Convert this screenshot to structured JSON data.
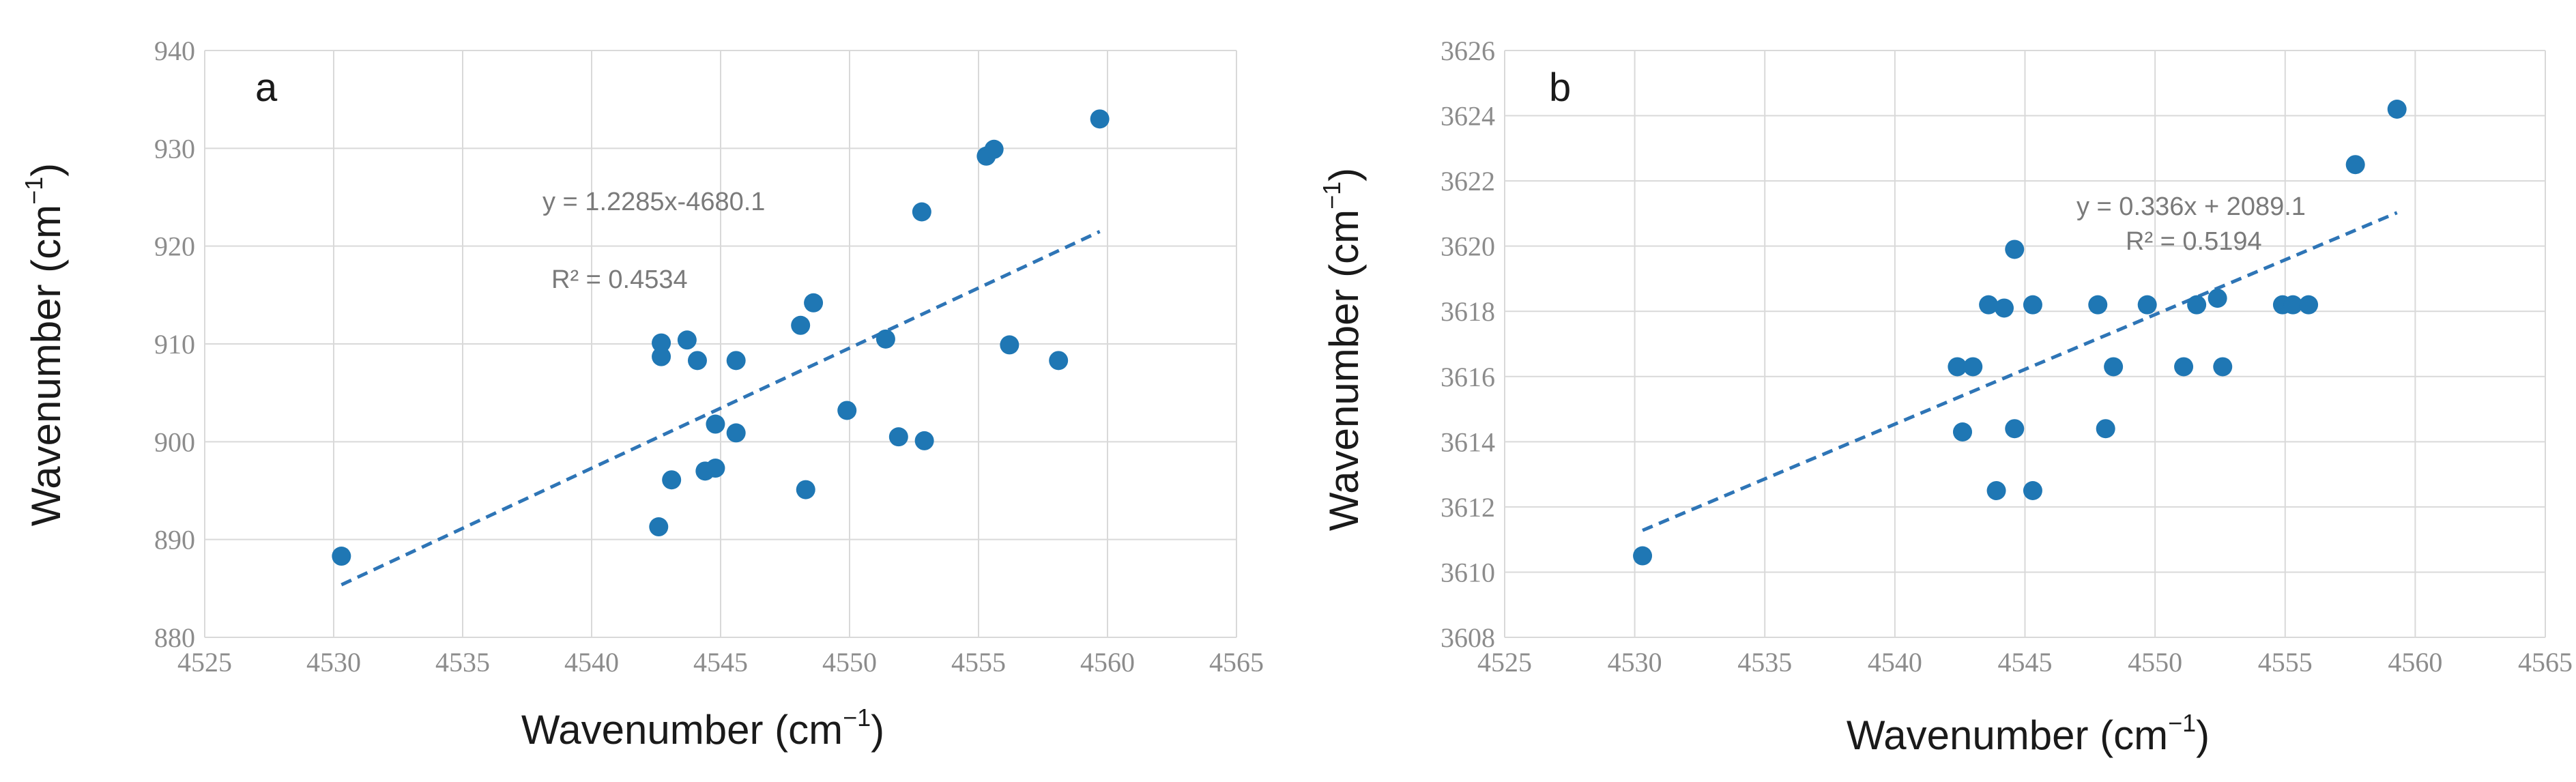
{
  "chart_data": [
    {
      "type": "scatter",
      "panel_label": "a",
      "xlabel": "Wavenumber (cm",
      "xlabel_sup": "−1",
      "xlabel_close": ")",
      "ylabel": "Wavenumber (cm",
      "ylabel_sup": "−1",
      "ylabel_close": ")",
      "xlim": [
        4525,
        4565
      ],
      "ylim": [
        880,
        940
      ],
      "xticks": [
        4525,
        4530,
        4535,
        4540,
        4545,
        4550,
        4555,
        4560,
        4565
      ],
      "yticks": [
        880,
        890,
        900,
        910,
        920,
        930,
        940
      ],
      "grid": true,
      "point_color": "#1f77b4",
      "points": [
        [
          4530.3,
          888.3
        ],
        [
          4542.6,
          891.3
        ],
        [
          4542.7,
          910.1
        ],
        [
          4542.7,
          908.7
        ],
        [
          4543.1,
          896.1
        ],
        [
          4543.7,
          910.4
        ],
        [
          4544.1,
          908.3
        ],
        [
          4544.4,
          897.0
        ],
        [
          4544.8,
          901.8
        ],
        [
          4544.8,
          897.3
        ],
        [
          4545.6,
          908.3
        ],
        [
          4545.6,
          900.9
        ],
        [
          4548.1,
          911.9
        ],
        [
          4548.3,
          895.1
        ],
        [
          4548.6,
          914.2
        ],
        [
          4549.9,
          903.2
        ],
        [
          4551.4,
          910.5
        ],
        [
          4551.9,
          900.5
        ],
        [
          4552.8,
          923.5
        ],
        [
          4552.9,
          900.1
        ],
        [
          4555.3,
          929.2
        ],
        [
          4555.6,
          929.9
        ],
        [
          4556.2,
          909.9
        ],
        [
          4558.1,
          908.3
        ],
        [
          4559.7,
          933.0
        ]
      ],
      "trendline": {
        "slope": 1.2285,
        "intercept": -4680.1,
        "x_range": [
          4530.3,
          4559.7
        ],
        "color": "#2e75b6",
        "style": "dashed"
      },
      "equation": "y = 1.2285x-4680.1",
      "r_squared": "R² = 0.4534"
    },
    {
      "type": "scatter",
      "panel_label": "b",
      "xlabel": "Wavenumber (cm",
      "xlabel_sup": "−1",
      "xlabel_close": ")",
      "ylabel": "Wavenumber (cm",
      "ylabel_sup": "−1",
      "ylabel_close": ")",
      "xlim": [
        4525,
        4565
      ],
      "ylim": [
        3608,
        3626
      ],
      "xticks": [
        4525,
        4530,
        4535,
        4540,
        4545,
        4550,
        4555,
        4560,
        4565
      ],
      "yticks": [
        3608,
        3610,
        3612,
        3614,
        3616,
        3618,
        3620,
        3622,
        3624,
        3626
      ],
      "grid": true,
      "point_color": "#1f77b4",
      "points": [
        [
          4530.3,
          3610.5
        ],
        [
          4542.4,
          3616.3
        ],
        [
          4542.6,
          3614.3
        ],
        [
          4543.0,
          3616.3
        ],
        [
          4543.6,
          3618.2
        ],
        [
          4543.9,
          3612.5
        ],
        [
          4544.2,
          3618.1
        ],
        [
          4544.6,
          3619.9
        ],
        [
          4544.6,
          3614.4
        ],
        [
          4545.3,
          3618.2
        ],
        [
          4545.3,
          3612.5
        ],
        [
          4547.8,
          3618.2
        ],
        [
          4548.1,
          3614.4
        ],
        [
          4548.4,
          3616.3
        ],
        [
          4549.7,
          3618.2
        ],
        [
          4551.1,
          3616.3
        ],
        [
          4551.6,
          3618.2
        ],
        [
          4552.4,
          3618.4
        ],
        [
          4552.6,
          3616.3
        ],
        [
          4554.9,
          3618.2
        ],
        [
          4555.3,
          3618.2
        ],
        [
          4555.9,
          3618.2
        ],
        [
          4557.7,
          3622.5
        ],
        [
          4559.3,
          3624.2
        ]
      ],
      "trendline": {
        "slope": 0.336,
        "intercept": 2089.1,
        "x_range": [
          4530.3,
          4559.3
        ],
        "color": "#2e75b6",
        "style": "dashed"
      },
      "equation": "y = 0.336x + 2089.1",
      "r_squared": "R² = 0.5194"
    }
  ]
}
